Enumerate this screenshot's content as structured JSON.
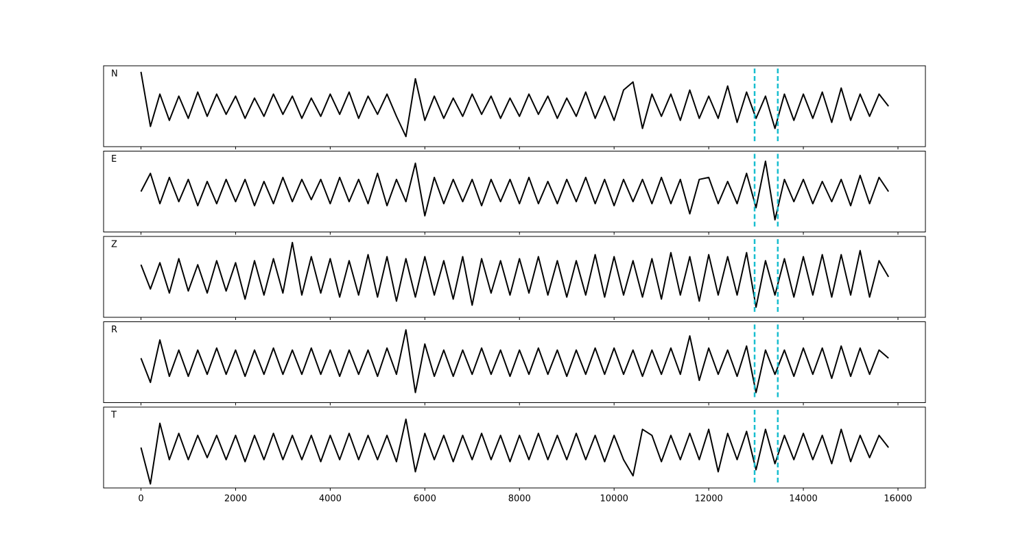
{
  "chart_data": {
    "type": "line",
    "x": [
      0,
      200,
      400,
      600,
      800,
      1000,
      1200,
      1400,
      1600,
      1800,
      2000,
      2200,
      2400,
      2600,
      2800,
      3000,
      3200,
      3400,
      3600,
      3800,
      4000,
      4200,
      4400,
      4600,
      4800,
      5000,
      5200,
      5400,
      5600,
      5800,
      6000,
      6200,
      6400,
      6600,
      6800,
      7000,
      7200,
      7400,
      7600,
      7800,
      8000,
      8200,
      8400,
      8600,
      8800,
      9000,
      9200,
      9400,
      9600,
      9800,
      10000,
      10200,
      10400,
      10600,
      10800,
      11000,
      11200,
      11400,
      11600,
      11800,
      12000,
      12200,
      12400,
      12600,
      12800,
      13000,
      13200,
      13400,
      13600,
      13800,
      14000,
      14200,
      14400,
      14600,
      14800,
      15000,
      15200,
      15400,
      15600,
      15800
    ],
    "series": [
      {
        "name": "N",
        "color": "#000000",
        "values": [
          0.85,
          -0.5,
          0.3,
          -0.35,
          0.25,
          -0.3,
          0.35,
          -0.25,
          0.3,
          -0.2,
          0.25,
          -0.3,
          0.2,
          -0.25,
          0.3,
          -0.2,
          0.25,
          -0.3,
          0.2,
          -0.25,
          0.3,
          -0.2,
          0.35,
          -0.3,
          0.25,
          -0.2,
          0.3,
          -0.25,
          -0.75,
          0.68,
          -0.35,
          0.25,
          -0.3,
          0.2,
          -0.25,
          0.3,
          -0.2,
          0.25,
          -0.3,
          0.2,
          -0.25,
          0.3,
          -0.2,
          0.25,
          -0.3,
          0.2,
          -0.25,
          0.35,
          -0.3,
          0.25,
          -0.35,
          0.4,
          0.6,
          -0.55,
          0.3,
          -0.25,
          0.3,
          -0.35,
          0.4,
          -0.3,
          0.25,
          -0.3,
          0.5,
          -0.4,
          0.35,
          -0.3,
          0.25,
          -0.55,
          0.3,
          -0.35,
          0.3,
          -0.3,
          0.35,
          -0.4,
          0.45,
          -0.35,
          0.3,
          -0.25,
          0.3,
          0.0
        ]
      },
      {
        "name": "E",
        "color": "#000000",
        "values": [
          0.0,
          0.45,
          -0.3,
          0.35,
          -0.25,
          0.3,
          -0.35,
          0.25,
          -0.3,
          0.3,
          -0.25,
          0.3,
          -0.35,
          0.25,
          -0.3,
          0.35,
          -0.25,
          0.3,
          -0.2,
          0.3,
          -0.3,
          0.35,
          -0.25,
          0.3,
          -0.3,
          0.45,
          -0.35,
          0.3,
          -0.25,
          0.7,
          -0.6,
          0.35,
          -0.3,
          0.3,
          -0.25,
          0.3,
          -0.35,
          0.3,
          -0.25,
          0.3,
          -0.3,
          0.35,
          -0.3,
          0.25,
          -0.3,
          0.3,
          -0.25,
          0.35,
          -0.3,
          0.3,
          -0.35,
          0.3,
          -0.25,
          0.3,
          -0.3,
          0.35,
          -0.3,
          0.3,
          -0.55,
          0.3,
          0.35,
          -0.3,
          0.25,
          -0.3,
          0.45,
          -0.4,
          0.75,
          -0.7,
          0.3,
          -0.25,
          0.3,
          -0.3,
          0.25,
          -0.25,
          0.3,
          -0.35,
          0.4,
          -0.3,
          0.35,
          0.0
        ]
      },
      {
        "name": "Z",
        "color": "#000000",
        "values": [
          0.3,
          -0.3,
          0.35,
          -0.4,
          0.45,
          -0.35,
          0.3,
          -0.4,
          0.4,
          -0.35,
          0.35,
          -0.55,
          0.4,
          -0.45,
          0.45,
          -0.4,
          0.85,
          -0.45,
          0.5,
          -0.4,
          0.45,
          -0.5,
          0.4,
          -0.45,
          0.55,
          -0.5,
          0.5,
          -0.6,
          0.45,
          -0.5,
          0.5,
          -0.45,
          0.4,
          -0.55,
          0.5,
          -0.7,
          0.45,
          -0.4,
          0.4,
          -0.45,
          0.45,
          -0.4,
          0.5,
          -0.45,
          0.4,
          -0.5,
          0.4,
          -0.45,
          0.55,
          -0.5,
          0.5,
          -0.45,
          0.4,
          -0.5,
          0.45,
          -0.55,
          0.6,
          -0.45,
          0.5,
          -0.6,
          0.55,
          -0.45,
          0.5,
          -0.45,
          0.6,
          -0.75,
          0.4,
          -0.45,
          0.45,
          -0.5,
          0.5,
          -0.45,
          0.55,
          -0.5,
          0.55,
          -0.45,
          0.65,
          -0.5,
          0.4,
          0.0
        ]
      },
      {
        "name": "R",
        "color": "#000000",
        "values": [
          0.1,
          -0.5,
          0.55,
          -0.35,
          0.3,
          -0.35,
          0.3,
          -0.3,
          0.35,
          -0.3,
          0.3,
          -0.35,
          0.3,
          -0.3,
          0.35,
          -0.3,
          0.3,
          -0.3,
          0.35,
          -0.3,
          0.3,
          -0.35,
          0.3,
          -0.3,
          0.3,
          -0.35,
          0.35,
          -0.3,
          0.8,
          -0.75,
          0.45,
          -0.35,
          0.3,
          -0.35,
          0.3,
          -0.3,
          0.35,
          -0.3,
          0.3,
          -0.35,
          0.3,
          -0.3,
          0.35,
          -0.3,
          0.3,
          -0.35,
          0.3,
          -0.3,
          0.35,
          -0.3,
          0.35,
          -0.3,
          0.3,
          -0.35,
          0.3,
          -0.3,
          0.35,
          -0.3,
          0.65,
          -0.45,
          0.35,
          -0.3,
          0.3,
          -0.35,
          0.4,
          -0.75,
          0.3,
          -0.3,
          0.3,
          -0.35,
          0.35,
          -0.3,
          0.35,
          -0.4,
          0.4,
          -0.35,
          0.35,
          -0.3,
          0.3,
          0.1
        ]
      },
      {
        "name": "T",
        "color": "#000000",
        "values": [
          0.0,
          -0.9,
          0.6,
          -0.3,
          0.35,
          -0.3,
          0.3,
          -0.25,
          0.3,
          -0.3,
          0.3,
          -0.35,
          0.3,
          -0.3,
          0.35,
          -0.3,
          0.3,
          -0.3,
          0.3,
          -0.35,
          0.3,
          -0.3,
          0.35,
          -0.3,
          0.3,
          -0.3,
          0.3,
          -0.35,
          0.7,
          -0.6,
          0.35,
          -0.3,
          0.3,
          -0.35,
          0.3,
          -0.3,
          0.35,
          -0.3,
          0.3,
          -0.35,
          0.3,
          -0.3,
          0.35,
          -0.3,
          0.3,
          -0.3,
          0.35,
          -0.3,
          0.3,
          -0.35,
          0.3,
          -0.3,
          -0.7,
          0.45,
          0.3,
          -0.35,
          0.3,
          -0.3,
          0.35,
          -0.3,
          0.45,
          -0.6,
          0.35,
          -0.3,
          0.4,
          -0.55,
          0.45,
          -0.4,
          0.3,
          -0.3,
          0.35,
          -0.3,
          0.3,
          -0.4,
          0.45,
          -0.35,
          0.3,
          -0.25,
          0.3,
          0.0
        ]
      }
    ],
    "vlines": {
      "values": [
        12970,
        13460
      ],
      "color": "#17becf"
    },
    "xlim": [
      -790,
      16580
    ],
    "xticks": [
      0,
      2000,
      4000,
      6000,
      8000,
      10000,
      12000,
      14000,
      16000
    ],
    "ylim": [
      -1,
      1
    ]
  }
}
